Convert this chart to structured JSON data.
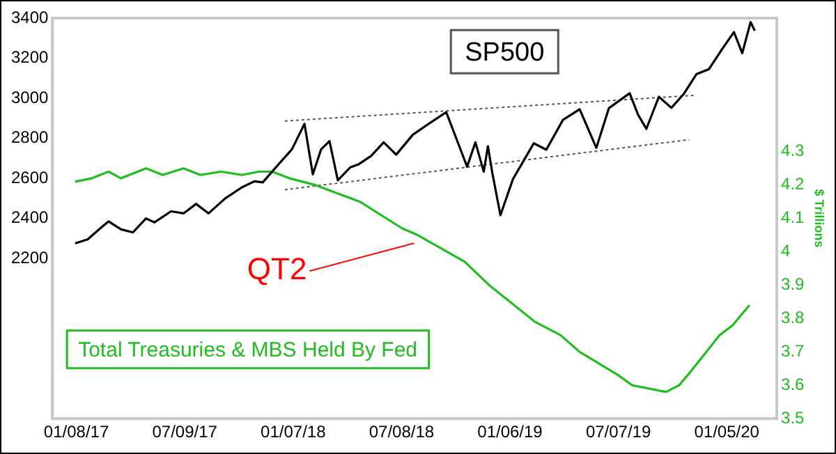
{
  "chart_data": {
    "type": "line",
    "y2label": "$ Trillions",
    "xlim": [
      "2016-11-29",
      "2020-03-29"
    ],
    "xticks": [
      {
        "value": "2017-01-08",
        "label": "01/08/17"
      },
      {
        "value": "2017-07-09",
        "label": "07/09/17"
      },
      {
        "value": "2018-01-07",
        "label": "01/07/18"
      },
      {
        "value": "2018-07-08",
        "label": "07/08/18"
      },
      {
        "value": "2019-01-06",
        "label": "01/06/19"
      },
      {
        "value": "2019-07-07",
        "label": "07/07/19"
      },
      {
        "value": "2020-01-05",
        "label": "01/05/20"
      }
    ],
    "ylim": [
      1400,
      3400
    ],
    "yticks": [
      2200,
      2400,
      2600,
      2800,
      3000,
      3200,
      3400
    ],
    "y2lim": [
      3.5,
      4.7
    ],
    "y2ticks": [
      3.5,
      3.6,
      3.7,
      3.8,
      3.9,
      4,
      4.1,
      4.2,
      4.3
    ],
    "grid": false,
    "legend": false,
    "marker": "none",
    "line_style": "solid",
    "annotations": [
      "QT2"
    ],
    "series": [
      {
        "name": "SP500",
        "color": "#000000",
        "x": [
          "2017-01-06",
          "2017-01-27",
          "2017-02-17",
          "2017-03-03",
          "2017-03-24",
          "2017-04-13",
          "2017-05-05",
          "2017-05-19",
          "2017-06-16",
          "2017-07-07",
          "2017-07-28",
          "2017-08-18",
          "2017-09-15",
          "2017-10-13",
          "2017-11-03",
          "2017-11-17",
          "2017-12-15",
          "2018-01-05",
          "2018-01-26",
          "2018-02-09",
          "2018-02-23",
          "2018-03-09",
          "2018-03-23",
          "2018-04-13",
          "2018-04-27",
          "2018-05-18",
          "2018-06-08",
          "2018-06-29",
          "2018-07-27",
          "2018-08-24",
          "2018-09-21",
          "2018-10-12",
          "2018-10-26",
          "2018-11-09",
          "2018-11-23",
          "2018-11-30",
          "2018-12-07",
          "2018-12-21",
          "2019-01-11",
          "2019-02-15",
          "2019-03-08",
          "2019-04-05",
          "2019-05-03",
          "2019-05-31",
          "2019-06-21",
          "2019-07-26",
          "2019-08-09",
          "2019-08-23",
          "2019-09-13",
          "2019-10-04",
          "2019-10-25",
          "2019-11-15",
          "2019-12-06",
          "2019-12-27",
          "2020-01-17",
          "2020-01-31",
          "2020-02-14",
          "2020-02-21"
        ],
        "values": [
          2275,
          2295,
          2350,
          2385,
          2345,
          2330,
          2400,
          2380,
          2435,
          2425,
          2472,
          2425,
          2500,
          2555,
          2585,
          2580,
          2675,
          2745,
          2872,
          2620,
          2745,
          2786,
          2590,
          2655,
          2670,
          2712,
          2780,
          2718,
          2818,
          2875,
          2930,
          2767,
          2658,
          2780,
          2633,
          2760,
          2633,
          2416,
          2596,
          2775,
          2743,
          2892,
          2945,
          2752,
          2950,
          3025,
          2918,
          2847,
          3007,
          2952,
          3022,
          3120,
          3145,
          3240,
          3330,
          3225,
          3380,
          3337
        ]
      },
      {
        "name": "Total Treasuries & MBS Held By Fed",
        "color": "#22bb22",
        "axis": "y2",
        "x": [
          "2017-01-06",
          "2017-02-03",
          "2017-03-03",
          "2017-03-24",
          "2017-05-05",
          "2017-06-02",
          "2017-07-07",
          "2017-08-04",
          "2017-09-08",
          "2017-10-13",
          "2017-11-10",
          "2017-12-03",
          "2018-01-01",
          "2018-02-13",
          "2018-04-29",
          "2018-07-09",
          "2018-08-04",
          "2018-10-22",
          "2018-12-02",
          "2019-02-17",
          "2019-04-01",
          "2019-05-03",
          "2019-07-07",
          "2019-07-30",
          "2019-09-25",
          "2019-10-17",
          "2019-11-05",
          "2019-12-24",
          "2020-01-15",
          "2020-02-12"
        ],
        "values": [
          4.21,
          4.22,
          4.24,
          4.22,
          4.25,
          4.23,
          4.25,
          4.23,
          4.24,
          4.23,
          4.24,
          4.24,
          4.22,
          4.2,
          4.15,
          4.07,
          4.05,
          3.97,
          3.9,
          3.79,
          3.75,
          3.7,
          3.63,
          3.6,
          3.58,
          3.6,
          3.64,
          3.75,
          3.78,
          3.84
        ]
      },
      {
        "color": "#555555",
        "line_style": "dotted",
        "x": [
          "2017-12-24",
          "2019-11-10"
        ],
        "values": [
          2886,
          3014
        ]
      },
      {
        "color": "#555555",
        "line_style": "dotted",
        "x": [
          "2017-12-24",
          "2019-11-03"
        ],
        "values": [
          2543,
          2793
        ]
      }
    ]
  }
}
